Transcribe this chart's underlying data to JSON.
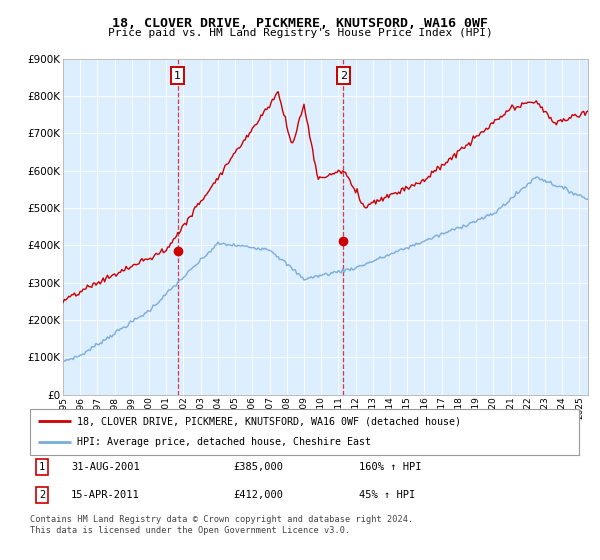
{
  "title": "18, CLOVER DRIVE, PICKMERE, KNUTSFORD, WA16 0WF",
  "subtitle": "Price paid vs. HM Land Registry's House Price Index (HPI)",
  "legend_line1": "18, CLOVER DRIVE, PICKMERE, KNUTSFORD, WA16 0WF (detached house)",
  "legend_line2": "HPI: Average price, detached house, Cheshire East",
  "footnote": "Contains HM Land Registry data © Crown copyright and database right 2024.\nThis data is licensed under the Open Government Licence v3.0.",
  "purchase1_date": "31-AUG-2001",
  "purchase1_price": "£385,000",
  "purchase1_pct": "160% ↑ HPI",
  "purchase2_date": "15-APR-2011",
  "purchase2_price": "£412,000",
  "purchase2_pct": "45% ↑ HPI",
  "purchase1_year": 2001.67,
  "purchase2_year": 2011.29,
  "purchase1_val": 385000,
  "purchase2_val": 412000,
  "red_color": "#cc0000",
  "blue_color": "#7aaddc",
  "background_color": "#ddeeff",
  "marker_box_color": "#cc0000",
  "ylim_min": 0,
  "ylim_max": 900000,
  "xlim_min": 1995,
  "xlim_max": 2025.5
}
